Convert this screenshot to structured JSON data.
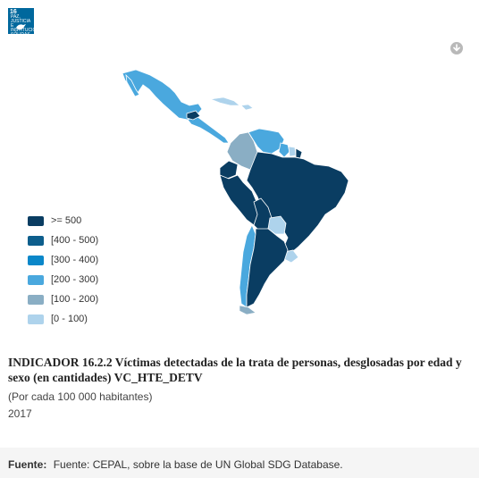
{
  "badge": {
    "number": "16",
    "text": "PAZ, JUSTICIA E INSTITUCIONES SÓLIDAS"
  },
  "legend": [
    {
      "label": ">= 500",
      "color": "#0a3d62"
    },
    {
      "label": "[400 - 500)",
      "color": "#0d5e8c"
    },
    {
      "label": "[300 - 400)",
      "color": "#0a87c9"
    },
    {
      "label": "[200 - 300)",
      "color": "#4aa8de"
    },
    {
      "label": "[100 - 200)",
      "color": "#8aaec4"
    },
    {
      "label": "[0 - 100)",
      "color": "#aed3ec"
    }
  ],
  "indicator": {
    "title": "INDICADOR 16.2.2 Víctimas detectadas de la trata de personas, desglosadas por edad y sexo (en cantidades) VC_HTE_DETV",
    "subtitle": "(Por cada 100 000 habitantes)",
    "year": "2017"
  },
  "footer": {
    "label": "Fuente:",
    "text": "Fuente: CEPAL, sobre la base de UN Global SDG Database."
  },
  "map_classes": {
    "mexico": ">= 500 class: [200 - 300)",
    "central_america": "[200 - 300)",
    "colombia": "[100 - 200)",
    "venezuela": "[200 - 300)",
    "brazil": ">= 500",
    "peru": ">= 500",
    "bolivia": ">= 500",
    "argentina": ">= 500",
    "chile": "[200 - 300)",
    "paraguay": "[0 - 100)",
    "uruguay": "[0 - 100)"
  }
}
